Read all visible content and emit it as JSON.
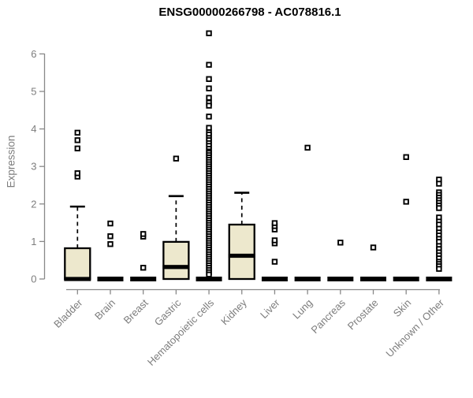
{
  "chart_data": {
    "type": "boxplot",
    "title": "ENSG00000266798 - AC078816.1",
    "ylabel": "Expression",
    "xlabel": "",
    "ylim": [
      0,
      6.6
    ],
    "yticks": [
      0,
      1,
      2,
      3,
      4,
      5,
      6
    ],
    "grid": false,
    "legend": "none",
    "colors": {
      "box_fill": "#EDE8CD",
      "box_border": "#000000",
      "median": "#000000",
      "outlier_stroke": "#000000",
      "outlier_fill": "#FFFFFF",
      "axis": "#888888",
      "tick_text": "#7D7D7D",
      "title_text": "#000000"
    },
    "categories": [
      "Bladder",
      "Brain",
      "Breast",
      "Gastric",
      "Hematopoietic cells",
      "Kidney",
      "Liver",
      "Lung",
      "Pancreas",
      "Prostate",
      "Skin",
      "Unknown / Other"
    ],
    "series": [
      {
        "category": "Bladder",
        "q1": 0,
        "median": 0,
        "q3": 0.82,
        "whisker_low": 0,
        "whisker_high": 1.93,
        "outliers": [
          2.73,
          2.82,
          3.48,
          3.7,
          3.9
        ]
      },
      {
        "category": "Brain",
        "q1": 0,
        "median": 0,
        "q3": 0,
        "whisker_low": 0,
        "whisker_high": 0,
        "outliers": [
          0.93,
          1.14,
          1.48
        ]
      },
      {
        "category": "Breast",
        "q1": 0,
        "median": 0,
        "q3": 0,
        "whisker_low": 0,
        "whisker_high": 0,
        "outliers": [
          0.3,
          1.13,
          1.2
        ]
      },
      {
        "category": "Gastric",
        "q1": 0,
        "median": 0.32,
        "q3": 0.99,
        "whisker_low": 0,
        "whisker_high": 2.21,
        "outliers": [
          3.21
        ]
      },
      {
        "category": "Hematopoietic cells",
        "q1": 0,
        "median": 0,
        "q3": 0,
        "whisker_low": 0,
        "whisker_high": 0,
        "outliers": [
          6.55,
          5.71,
          5.33,
          5.08,
          4.83,
          4.7,
          4.62,
          4.33,
          4.03,
          3.91,
          3.85,
          3.76,
          3.7,
          3.62,
          3.55,
          3.47,
          3.4,
          3.36,
          3.3,
          3.24,
          3.18,
          3.12,
          3.06,
          3.0,
          2.94,
          2.88,
          2.82,
          2.76,
          2.7,
          2.64,
          2.58,
          2.52,
          2.46,
          2.4,
          2.34,
          2.28,
          2.22,
          2.16,
          2.1,
          2.04,
          1.98,
          1.92,
          1.86,
          1.8,
          1.74,
          1.68,
          1.62,
          1.56,
          1.5,
          1.44,
          1.38,
          1.32,
          1.26,
          1.2,
          1.14,
          1.08,
          1.02,
          0.96,
          0.9,
          0.84,
          0.78,
          0.72,
          0.66,
          0.6,
          0.54,
          0.48,
          0.42,
          0.36,
          0.3,
          0.24,
          0.18,
          0.12
        ]
      },
      {
        "category": "Kidney",
        "q1": 0,
        "median": 0.62,
        "q3": 1.45,
        "whisker_low": 0,
        "whisker_high": 2.3,
        "outliers": []
      },
      {
        "category": "Liver",
        "q1": 0,
        "median": 0,
        "q3": 0,
        "whisker_low": 0,
        "whisker_high": 0,
        "outliers": [
          0.46,
          0.95,
          1.03,
          1.32,
          1.41,
          1.49
        ]
      },
      {
        "category": "Lung",
        "q1": 0,
        "median": 0,
        "q3": 0,
        "whisker_low": 0,
        "whisker_high": 0,
        "outliers": [
          3.5
        ]
      },
      {
        "category": "Pancreas",
        "q1": 0,
        "median": 0,
        "q3": 0,
        "whisker_low": 0,
        "whisker_high": 0,
        "outliers": [
          0.97
        ]
      },
      {
        "category": "Prostate",
        "q1": 0,
        "median": 0,
        "q3": 0,
        "whisker_low": 0,
        "whisker_high": 0,
        "outliers": [
          0.84
        ]
      },
      {
        "category": "Skin",
        "q1": 0,
        "median": 0,
        "q3": 0,
        "whisker_low": 0,
        "whisker_high": 0,
        "outliers": [
          2.06,
          3.25
        ]
      },
      {
        "category": "Unknown / Other",
        "q1": 0,
        "median": 0,
        "q3": 0,
        "whisker_low": 0,
        "whisker_high": 0,
        "outliers": [
          2.65,
          2.54,
          2.31,
          2.24,
          2.17,
          2.1,
          2.03,
          1.96,
          1.89,
          1.64,
          1.53,
          1.45,
          1.34,
          1.24,
          1.16,
          1.07,
          0.99,
          0.88,
          0.8,
          0.71,
          0.63,
          0.55,
          0.46,
          0.4,
          0.34,
          0.27
        ]
      }
    ]
  }
}
